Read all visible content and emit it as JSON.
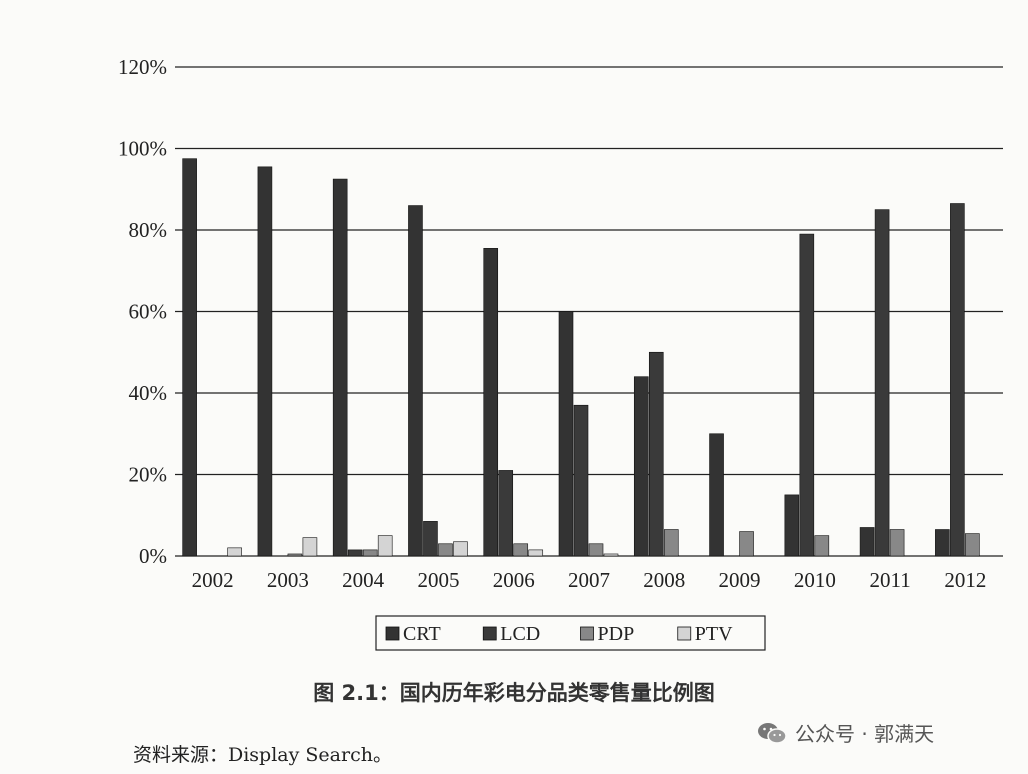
{
  "chart_data": {
    "type": "bar",
    "categories": [
      "2002",
      "2003",
      "2004",
      "2005",
      "2006",
      "2007",
      "2008",
      "2009",
      "2010",
      "2011",
      "2012"
    ],
    "series": [
      {
        "name": "CRT",
        "color": "#333333",
        "values": [
          97.5,
          95.5,
          92.5,
          86,
          75.5,
          60,
          44,
          30,
          15,
          7,
          6.5
        ]
      },
      {
        "name": "LCD",
        "color": "#3a3a3a",
        "values": [
          0,
          0,
          1.5,
          8.5,
          21,
          37,
          50,
          0,
          79,
          85,
          86.5
        ]
      },
      {
        "name": "PDP",
        "color": "#888888",
        "values": [
          0,
          0.5,
          1.5,
          3,
          3,
          3,
          6.5,
          6,
          5,
          6.5,
          5.5
        ]
      },
      {
        "name": "PTV",
        "color": "#d4d4d4",
        "values": [
          2,
          4.5,
          5,
          3.5,
          1.5,
          0.5,
          0,
          0,
          0,
          0,
          0
        ]
      }
    ],
    "y_ticks": [
      "0%",
      "20%",
      "40%",
      "60%",
      "80%",
      "100%",
      "120%"
    ],
    "ylim": [
      0,
      120
    ],
    "grid": true,
    "legend_position": "bottom-center"
  },
  "caption": "图 2.1：国内历年彩电分品类零售量比例图",
  "source": "资料来源：Display Search。",
  "watermark": "公众号 · 郭满天"
}
